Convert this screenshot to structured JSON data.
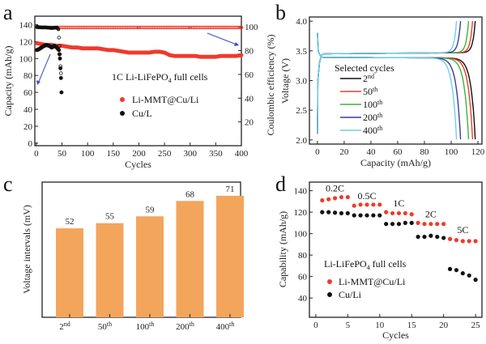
{
  "panels": {
    "a": "a",
    "b": "b",
    "c": "c",
    "d": "d"
  },
  "colors": {
    "red": "#ee3b2c",
    "black": "#111111",
    "bar": "#f4a55c",
    "green": "#3cb43c",
    "blue": "#3a3aa8",
    "cyan": "#6fd0ea",
    "arrow": "#3c4cc8"
  },
  "chart_data": [
    {
      "id": "a",
      "type": "scatter",
      "xlabel": "Cycles",
      "ylabel": "Capacity (mAh/g)",
      "y2label": "Coulombic efficiency (%)",
      "xlim": [
        -3,
        400
      ],
      "ylim": [
        -3,
        150
      ],
      "y2lim": [
        0,
        109
      ],
      "xticks": [
        0,
        50,
        100,
        150,
        200,
        250,
        300,
        350,
        400
      ],
      "yticks": [
        0,
        20,
        40,
        60,
        80,
        100,
        120,
        140
      ],
      "y2ticks": [
        20,
        40,
        60,
        80,
        100
      ],
      "annotation": "1C  Li-LiFePO",
      "annotation_sub": "4",
      "annotation_tail": " full cells",
      "legend": [
        "Li-MMT@Cu/Li",
        "Cu/L"
      ],
      "series": [
        {
          "name": "Li-MMT@Cu/Li capacity",
          "axis": "left",
          "color": "red",
          "marker": "filled",
          "points": [
            [
              1,
              118
            ],
            [
              10,
              117
            ],
            [
              20,
              116
            ],
            [
              30,
              116
            ],
            [
              40,
              115
            ],
            [
              50,
              115
            ],
            [
              60,
              114
            ],
            [
              70,
              113
            ],
            [
              80,
              113
            ],
            [
              90,
              112
            ],
            [
              100,
              112
            ],
            [
              110,
              112
            ],
            [
              120,
              112
            ],
            [
              130,
              111
            ],
            [
              140,
              110
            ],
            [
              150,
              110
            ],
            [
              160,
              109
            ],
            [
              170,
              108
            ],
            [
              180,
              107
            ],
            [
              190,
              107
            ],
            [
              200,
              107
            ],
            [
              210,
              107
            ],
            [
              220,
              107
            ],
            [
              230,
              108
            ],
            [
              240,
              108
            ],
            [
              250,
              107
            ],
            [
              260,
              104
            ],
            [
              270,
              103
            ],
            [
              280,
              103
            ],
            [
              290,
              103
            ],
            [
              300,
              103
            ],
            [
              310,
              103
            ],
            [
              320,
              102
            ],
            [
              330,
              102
            ],
            [
              340,
              102
            ],
            [
              350,
              102
            ],
            [
              360,
              103
            ],
            [
              370,
              103
            ],
            [
              380,
              103
            ],
            [
              390,
              103
            ],
            [
              400,
              104
            ]
          ]
        },
        {
          "name": "Li-MMT@Cu/Li CE",
          "axis": "right",
          "color": "red",
          "marker": "open",
          "points": [
            [
              1,
              99.5
            ],
            [
              100,
              99.5
            ],
            [
              200,
              99.5
            ],
            [
              300,
              99.5
            ],
            [
              400,
              99.5
            ]
          ]
        },
        {
          "name": "Cu/L capacity",
          "axis": "left",
          "color": "black",
          "marker": "filled",
          "points": [
            [
              1,
              110
            ],
            [
              5,
              111
            ],
            [
              10,
              113
            ],
            [
              15,
              115
            ],
            [
              20,
              116
            ],
            [
              25,
              115
            ],
            [
              30,
              113
            ],
            [
              35,
              115
            ],
            [
              40,
              113
            ],
            [
              44,
              110
            ],
            [
              46,
              100
            ],
            [
              48,
              77
            ],
            [
              49,
              60
            ]
          ]
        },
        {
          "name": "Cu/L CE",
          "axis": "right",
          "color": "black",
          "marker": "open",
          "points": [
            [
              1,
              100
            ],
            [
              10,
              99.5
            ],
            [
              20,
              99.5
            ],
            [
              30,
              99
            ],
            [
              40,
              99.5
            ],
            [
              43,
              98
            ],
            [
              46,
              77
            ],
            [
              47,
              67
            ],
            [
              48,
              61
            ]
          ]
        }
      ]
    },
    {
      "id": "b",
      "type": "line",
      "xlabel": "Capacity (mAh/g)",
      "ylabel": "Voltage (V)",
      "xlim": [
        -6,
        123
      ],
      "ylim": [
        1.93,
        4.07
      ],
      "xticks": [
        0,
        20,
        40,
        60,
        80,
        100,
        120
      ],
      "yticks": [
        2.0,
        2.5,
        3.0,
        3.5,
        4.0
      ],
      "legend_title": "Selected cycles",
      "series": [
        {
          "name": "2",
          "sup": "nd",
          "color": "black",
          "capacity": 118
        },
        {
          "name": "50",
          "sup": "th",
          "color": "red",
          "capacity": 116
        },
        {
          "name": "100",
          "sup": "th",
          "color": "green",
          "capacity": 113
        },
        {
          "name": "200",
          "sup": "th",
          "color": "blue",
          "capacity": 107
        },
        {
          "name": "400",
          "sup": "th",
          "color": "cyan",
          "capacity": 104
        }
      ]
    },
    {
      "id": "c",
      "type": "bar",
      "ylabel": "Voltage intervals (mV)",
      "ylim": [
        0,
        79
      ],
      "categories": [
        {
          "n": "2",
          "sup": "nd"
        },
        {
          "n": "50",
          "sup": "th"
        },
        {
          "n": "100",
          "sup": "th"
        },
        {
          "n": "200",
          "sup": "th"
        },
        {
          "n": "400",
          "sup": "th"
        }
      ],
      "values": [
        52,
        55,
        59,
        68,
        71
      ]
    },
    {
      "id": "d",
      "type": "scatter",
      "xlabel": "Cycles",
      "ylabel": "Capability (mAh/g)",
      "xlim": [
        -1,
        26
      ],
      "ylim": [
        22,
        148
      ],
      "xticks": [
        0,
        5,
        10,
        15,
        20,
        25
      ],
      "yticks": [
        40,
        60,
        80,
        100,
        120,
        140
      ],
      "annotation": "Li-LiFePO",
      "annotation_sub": "4",
      "annotation_tail": " full cells",
      "rate_labels": [
        "0.2C",
        "0.5C",
        "1C",
        "2C",
        "5C"
      ],
      "legend": [
        "Li-MMT@Cu/Li",
        "Cu/Li"
      ],
      "series": [
        {
          "name": "Li-MMT@Cu/Li",
          "color": "red",
          "values": [
            131,
            132,
            133,
            134,
            134,
            126,
            127,
            127,
            127,
            127,
            120,
            119,
            119,
            119,
            118,
            110,
            109,
            109,
            109,
            109,
            95,
            94,
            93,
            93,
            93
          ]
        },
        {
          "name": "Cu/Li",
          "color": "black",
          "values": [
            120,
            120,
            119.5,
            119,
            119,
            117,
            117,
            117,
            117,
            117,
            109,
            109,
            109,
            110,
            110,
            97,
            97,
            98,
            97,
            96,
            67,
            66,
            63,
            61,
            57
          ]
        }
      ]
    }
  ]
}
